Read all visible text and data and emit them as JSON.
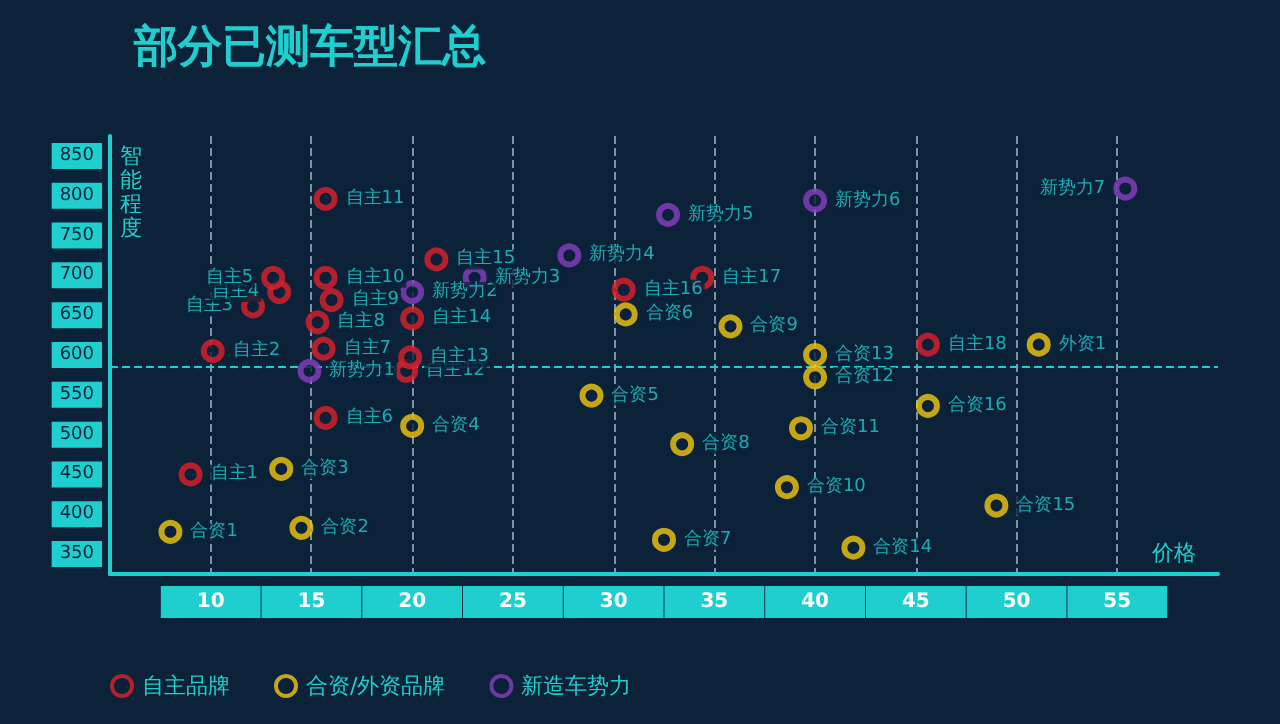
{
  "chart_data": {
    "type": "scatter",
    "title": "部分已测车型汇总",
    "xlabel": "价格",
    "ylabel": "智能程度",
    "xlim": [
      5,
      60
    ],
    "xticks": [
      10,
      15,
      20,
      25,
      30,
      35,
      40,
      45,
      50,
      55
    ],
    "ylim": [
      325,
      875
    ],
    "yticks": [
      350,
      400,
      450,
      500,
      550,
      600,
      650,
      700,
      750,
      800,
      850
    ],
    "grid": "x",
    "legend": "bottom left",
    "marker": "circle",
    "ref_lines": [
      {
        "axis": "y",
        "value": 585,
        "line_style": "dashed"
      }
    ],
    "series": [
      {
        "name": "自主品牌",
        "color": "#e0202a",
        "x": [
          9.0,
          10.1,
          12.1,
          13.4,
          13.1,
          15.7,
          15.6,
          15.3,
          16.0,
          15.7,
          15.7,
          19.7,
          19.9,
          20.0,
          21.2,
          30.5,
          34.4,
          45.6
        ],
        "values": [
          450,
          605,
          661,
          679,
          697,
          521,
          608,
          641,
          669,
          697,
          796,
          580,
          597,
          646,
          720,
          682,
          697,
          613
        ],
        "value_labels": [
          "自主1",
          "自主2",
          "自主3",
          "自主4",
          "自主5",
          "自主6",
          "自主7",
          "自主8",
          "自主9",
          "自主10",
          "自主11",
          "自主12",
          "自主13",
          "自主14",
          "自主15",
          "自主16",
          "自主17",
          "自主18"
        ]
      },
      {
        "name": "合资/外资品牌",
        "color": "#f2c80f",
        "x": [
          8.0,
          14.5,
          13.5,
          20.0,
          28.9,
          30.6,
          32.5,
          33.4,
          35.8,
          38.6,
          39.3,
          40.0,
          40.0,
          41.9,
          49.0,
          45.6,
          51.1
        ],
        "values": [
          378,
          383,
          457,
          511,
          549,
          651,
          368,
          488,
          636,
          434,
          508,
          572,
          600,
          358,
          411,
          536,
          613
        ],
        "value_labels": [
          "合资1",
          "合资2",
          "合资3",
          "合资4",
          "合资5",
          "合资6",
          "合资7",
          "合资8",
          "合资9",
          "合资10",
          "合资11",
          "合资12",
          "合资13",
          "合资14",
          "合资15",
          "合资16",
          "外资1"
        ]
      },
      {
        "name": "新造车势力",
        "color": "#8a3fc0",
        "x": [
          14.9,
          20.0,
          23.1,
          27.8,
          32.7,
          40.0,
          55.4
        ],
        "values": [
          580,
          679,
          697,
          725,
          776,
          794,
          809
        ],
        "value_labels": [
          "新势力1",
          "新势力2",
          "新势力3",
          "新势力4",
          "新势力5",
          "新势力6",
          "新势力7"
        ]
      }
    ]
  }
}
